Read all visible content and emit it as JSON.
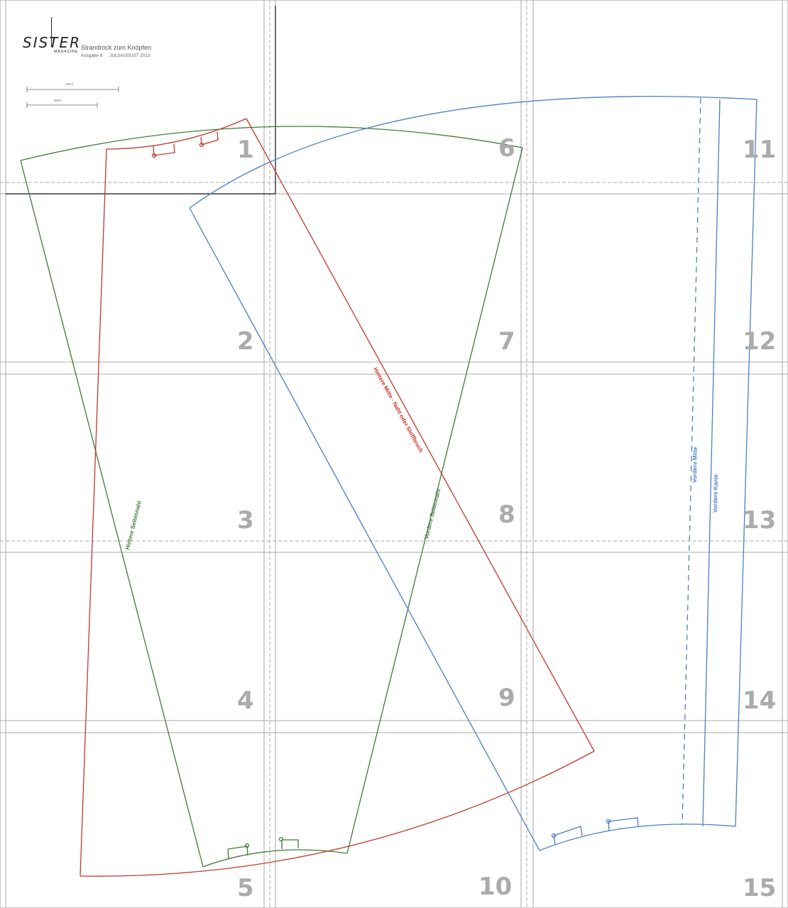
{
  "header": {
    "brand": "SIS",
    "brand_rest": "TER",
    "magazine": "MAGAZINE",
    "title": "Strandrock zum Knöpfen",
    "issue": "Ausgabe 8",
    "date": "JULI/AUGUST 2013",
    "scale_cm": "10cm",
    "scale_inch": "3inch"
  },
  "pages": [
    "1",
    "2",
    "3",
    "4",
    "5",
    "6",
    "7",
    "8",
    "9",
    "10",
    "11",
    "12",
    "13",
    "14",
    "15"
  ],
  "labels": {
    "back_center": "Hintere Mitte · Naht oder Stoffbruch",
    "back_side_seam": "Hintere Seitennaht",
    "front_side_seam": "Vordere Seitennaht",
    "front_center": "Vordere Mitte",
    "front_edge": "Vordere Kante"
  },
  "colors": {
    "green": "#3f7a3a",
    "red": "#c0392b",
    "blue": "#4a7fc0",
    "grid": "#a8a8a8",
    "page_number": "#ababab"
  }
}
